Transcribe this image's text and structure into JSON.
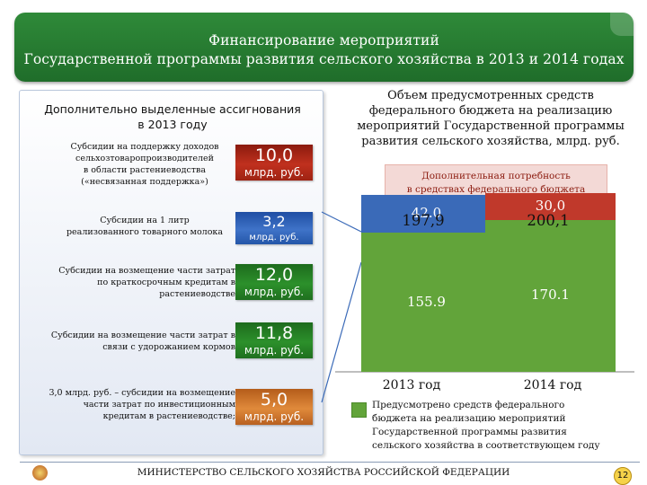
{
  "header": {
    "line1": "Финансирование мероприятий",
    "line2": "Государственной программы развития сельского хозяйства  в 2013 и 2014 годах"
  },
  "left_panel": {
    "title_line1": "Дополнительно выделенные ассигнования",
    "title_line2": "в 2013 году",
    "items": [
      {
        "desc": [
          "Субсидии на поддержку доходов",
          "сельхозтоваропроизводителей",
          "в области растениеводства",
          "(«несвязанная поддержка»)"
        ],
        "value": "10,0",
        "unit": "млрд. руб.",
        "color": "#b02a1a"
      },
      {
        "desc": [
          "Субсидии на 1 литр",
          "реализованного товарного молока"
        ],
        "value": "3,2",
        "unit": "млрд. руб.",
        "color": "#3366bb"
      },
      {
        "desc": [
          "Субсидии на возмещение части затрат",
          "по краткосрочным кредитам в",
          "растениеводстве"
        ],
        "value": "12,0",
        "unit": "млрд. руб.",
        "color": "#2a8a2a"
      },
      {
        "desc": [
          "Субсидии на возмещение части затрат в",
          "связи с удорожанием кормов"
        ],
        "value": "11,8",
        "unit": "млрд. руб.",
        "color": "#2a8a2a"
      },
      {
        "desc": [
          "3,0 млрд. руб. – субсидии на возмещение",
          "части затрат по инвестиционным",
          "кредитам в растениеводстве;"
        ],
        "value": "5,0",
        "unit": "млрд. руб.",
        "color": "#d07a30"
      }
    ]
  },
  "right_title": [
    "Объем предусмотренных средств",
    "федерального бюджета на реализацию",
    "мероприятий Государственной программы",
    "развития сельского хозяйства, млрд. руб."
  ],
  "additional_need_label": [
    "Дополнительная потребность",
    "в средствах федерального бюджета"
  ],
  "chart_data": {
    "type": "bar",
    "stacked": true,
    "categories": [
      "2013 год",
      "2014 год"
    ],
    "totals": [
      "197,9",
      "200,1"
    ],
    "series": [
      {
        "values": [
          155.9,
          170.1
        ],
        "labels": [
          "155.9",
          "170.1"
        ],
        "color": "#62a43a"
      },
      {
        "values": [
          42.0,
          30.0
        ],
        "labels": [
          "42.0",
          "30,0"
        ],
        "colors": [
          "#3a6ab8",
          "#c0392b"
        ]
      }
    ],
    "ylim": [
      0,
      230
    ]
  },
  "legend": {
    "text": [
      "Предусмотрено средств федерального",
      "бюджета на реализацию мероприятий",
      "Государственной программы развития",
      "сельского хозяйства в соответствующем году"
    ],
    "color": "#62a43a"
  },
  "footer": {
    "text": "МИНИСТЕРСТВО СЕЛЬСКОГО ХОЗЯЙСТВА РОССИЙСКОЙ ФЕДЕРАЦИИ",
    "page": "12"
  }
}
